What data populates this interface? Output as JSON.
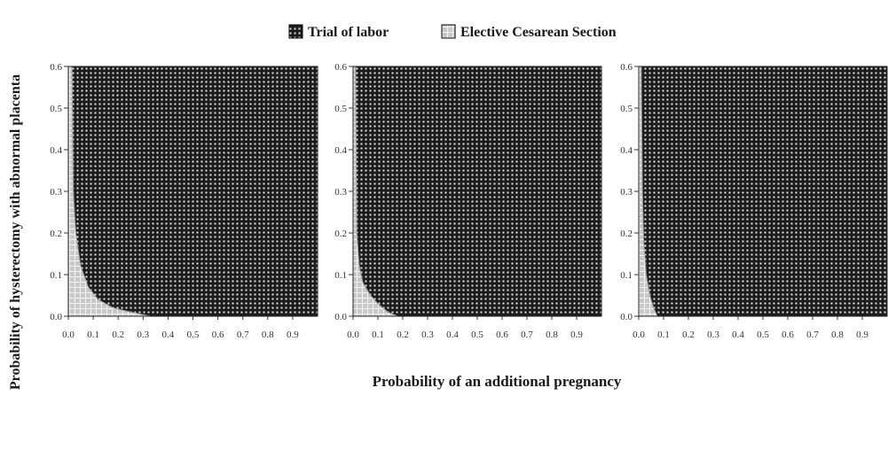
{
  "figure": {
    "legend": {
      "placement": "top-center",
      "entries": [
        {
          "label": "Trial of labor",
          "pattern": "dark-dotted",
          "color": "#1c1c1c"
        },
        {
          "label": "Elective Cesarean Section",
          "pattern": "light-grid",
          "color": "#c8c8c8"
        }
      ]
    },
    "ylabel": "Probability of hysterectomy with abnormal placenta",
    "xlabel": "Probability of an additional pregnancy"
  },
  "chart_data": [
    {
      "type": "area",
      "xlim": [
        0,
        1
      ],
      "ylim": [
        0,
        0.6
      ],
      "xticks": [
        "0.0",
        "0.1",
        "0.2",
        "0.3",
        "0.4",
        "0.5",
        "0.6",
        "0.7",
        "0.8",
        "0.9"
      ],
      "yticks": [
        "0.0",
        "0.1",
        "0.2",
        "0.3",
        "0.4",
        "0.5",
        "0.6"
      ],
      "grid": false,
      "regions": [
        {
          "name": "Trial of labor",
          "fill": "above-boundary"
        },
        {
          "name": "Elective Cesarean Section",
          "fill": "below-boundary"
        }
      ],
      "boundary": {
        "x": [
          0.015,
          0.02,
          0.03,
          0.05,
          0.08,
          0.12,
          0.18,
          0.25,
          0.33
        ],
        "y": [
          0.6,
          0.3,
          0.2,
          0.12,
          0.07,
          0.04,
          0.02,
          0.01,
          0.0
        ]
      }
    },
    {
      "type": "area",
      "xlim": [
        0,
        1
      ],
      "ylim": [
        0,
        0.6
      ],
      "xticks": [
        "0.0",
        "0.1",
        "0.2",
        "0.3",
        "0.4",
        "0.5",
        "0.6",
        "0.7",
        "0.8",
        "0.9"
      ],
      "yticks": [
        "0.0",
        "0.1",
        "0.2",
        "0.3",
        "0.4",
        "0.5",
        "0.6"
      ],
      "grid": false,
      "regions": [
        {
          "name": "Trial of labor",
          "fill": "above-boundary"
        },
        {
          "name": "Elective Cesarean Section",
          "fill": "below-boundary"
        }
      ],
      "boundary": {
        "x": [
          0.01,
          0.015,
          0.025,
          0.04,
          0.07,
          0.1,
          0.14,
          0.18
        ],
        "y": [
          0.6,
          0.2,
          0.12,
          0.08,
          0.05,
          0.03,
          0.01,
          0.0
        ]
      }
    },
    {
      "type": "area",
      "xlim": [
        0,
        1
      ],
      "ylim": [
        0,
        0.6
      ],
      "xticks": [
        "0.0",
        "0.1",
        "0.2",
        "0.3",
        "0.4",
        "0.5",
        "0.6",
        "0.7",
        "0.8",
        "0.9"
      ],
      "yticks": [
        "0.0",
        "0.1",
        "0.2",
        "0.3",
        "0.4",
        "0.5",
        "0.6"
      ],
      "grid": false,
      "regions": [
        {
          "name": "Trial of labor",
          "fill": "above-boundary"
        },
        {
          "name": "Elective Cesarean Section",
          "fill": "below-boundary"
        }
      ],
      "boundary": {
        "x": [
          0.01,
          0.015,
          0.02,
          0.03,
          0.045,
          0.06,
          0.075
        ],
        "y": [
          0.6,
          0.3,
          0.18,
          0.1,
          0.05,
          0.02,
          0.0
        ]
      }
    }
  ]
}
